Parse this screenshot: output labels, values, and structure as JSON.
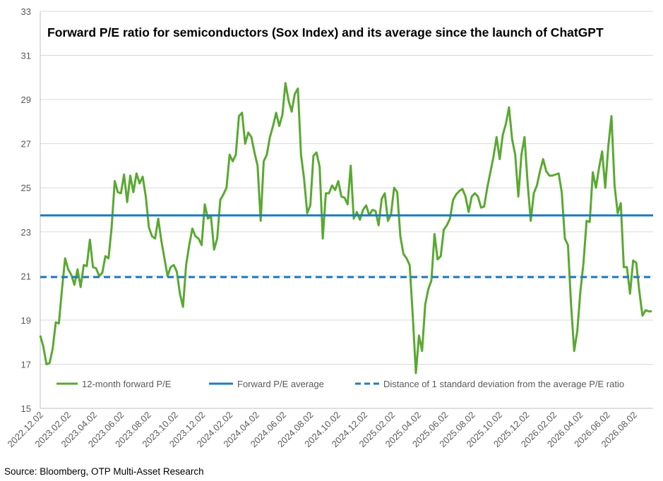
{
  "chart_data": {
    "type": "line",
    "title": "Forward P/E ratio for semiconductors (Sox Index) and its average since the launch of ChatGPT",
    "xlabel": "",
    "ylabel": "",
    "ylim": [
      15,
      33
    ],
    "y_ticks": [
      15,
      17,
      19,
      21,
      23,
      25,
      27,
      29,
      31,
      33
    ],
    "x_range": [
      "2022-12-02",
      "2026-09-14"
    ],
    "x_tick_labels": [
      "2022.12.02",
      "2023.02.02",
      "2023.04.02",
      "2023.06.02",
      "2023.08.02",
      "2023.10.02",
      "2023.12.02",
      "2024.02.02",
      "2024.04.02",
      "2024.06.02",
      "2024.08.02",
      "2024.10.02",
      "2024.12.02",
      "2025.02.02",
      "2025.04.02",
      "2025.06.02",
      "2025.08.02",
      "2025.10.02",
      "2025.12.02",
      "2026.02.02",
      "2026.04.02",
      "2026.06.02",
      "2026.08.02"
    ],
    "grid": true,
    "legend_position": "bottom",
    "series": [
      {
        "name": "12-month forward P/E",
        "color": "#5aa832",
        "style": "solid",
        "points": [
          [
            "2022-12-02",
            18.3
          ],
          [
            "2022-12-09",
            17.8
          ],
          [
            "2022-12-16",
            17.0
          ],
          [
            "2022-12-23",
            17.05
          ],
          [
            "2022-12-30",
            17.7
          ],
          [
            "2023-01-06",
            18.9
          ],
          [
            "2023-01-13",
            18.85
          ],
          [
            "2023-01-20",
            20.4
          ],
          [
            "2023-01-27",
            21.8
          ],
          [
            "2023-02-03",
            21.3
          ],
          [
            "2023-02-10",
            21.05
          ],
          [
            "2023-02-17",
            20.6
          ],
          [
            "2023-02-24",
            21.3
          ],
          [
            "2023-03-03",
            20.5
          ],
          [
            "2023-03-10",
            21.5
          ],
          [
            "2023-03-17",
            21.45
          ],
          [
            "2023-03-24",
            22.65
          ],
          [
            "2023-03-31",
            21.4
          ],
          [
            "2023-04-07",
            21.35
          ],
          [
            "2023-04-14",
            21.0
          ],
          [
            "2023-04-21",
            21.15
          ],
          [
            "2023-04-28",
            21.9
          ],
          [
            "2023-05-05",
            21.8
          ],
          [
            "2023-05-12",
            23.2
          ],
          [
            "2023-05-19",
            25.3
          ],
          [
            "2023-05-26",
            24.8
          ],
          [
            "2023-06-02",
            24.75
          ],
          [
            "2023-06-09",
            25.6
          ],
          [
            "2023-06-16",
            24.35
          ],
          [
            "2023-06-23",
            25.55
          ],
          [
            "2023-06-30",
            24.8
          ],
          [
            "2023-07-07",
            25.65
          ],
          [
            "2023-07-14",
            25.2
          ],
          [
            "2023-07-21",
            25.5
          ],
          [
            "2023-07-28",
            24.6
          ],
          [
            "2023-08-04",
            23.2
          ],
          [
            "2023-08-11",
            22.8
          ],
          [
            "2023-08-18",
            22.7
          ],
          [
            "2023-08-25",
            23.6
          ],
          [
            "2023-09-01",
            22.6
          ],
          [
            "2023-09-08",
            21.8
          ],
          [
            "2023-09-15",
            21.0
          ],
          [
            "2023-09-22",
            21.4
          ],
          [
            "2023-09-29",
            21.5
          ],
          [
            "2023-10-06",
            21.2
          ],
          [
            "2023-10-13",
            20.2
          ],
          [
            "2023-10-20",
            19.6
          ],
          [
            "2023-10-27",
            21.5
          ],
          [
            "2023-11-03",
            22.4
          ],
          [
            "2023-11-10",
            23.15
          ],
          [
            "2023-11-17",
            22.8
          ],
          [
            "2023-11-24",
            22.7
          ],
          [
            "2023-12-01",
            22.4
          ],
          [
            "2023-12-08",
            24.25
          ],
          [
            "2023-12-15",
            23.6
          ],
          [
            "2023-12-22",
            23.7
          ],
          [
            "2023-12-29",
            22.2
          ],
          [
            "2024-01-05",
            22.7
          ],
          [
            "2024-01-12",
            24.45
          ],
          [
            "2024-01-19",
            24.7
          ],
          [
            "2024-01-26",
            25.0
          ],
          [
            "2024-02-02",
            26.5
          ],
          [
            "2024-02-09",
            26.2
          ],
          [
            "2024-02-16",
            26.5
          ],
          [
            "2024-02-23",
            28.25
          ],
          [
            "2024-03-01",
            28.4
          ],
          [
            "2024-03-08",
            27.0
          ],
          [
            "2024-03-15",
            27.5
          ],
          [
            "2024-03-22",
            27.3
          ],
          [
            "2024-03-29",
            26.6
          ],
          [
            "2024-04-05",
            26.0
          ],
          [
            "2024-04-12",
            23.5
          ],
          [
            "2024-04-19",
            26.2
          ],
          [
            "2024-04-26",
            26.5
          ],
          [
            "2024-05-03",
            27.3
          ],
          [
            "2024-05-10",
            27.8
          ],
          [
            "2024-05-17",
            28.4
          ],
          [
            "2024-05-24",
            27.8
          ],
          [
            "2024-05-31",
            28.3
          ],
          [
            "2024-06-07",
            29.75
          ],
          [
            "2024-06-14",
            28.95
          ],
          [
            "2024-06-21",
            28.45
          ],
          [
            "2024-06-28",
            29.25
          ],
          [
            "2024-07-05",
            29.5
          ],
          [
            "2024-07-12",
            26.5
          ],
          [
            "2024-07-19",
            25.4
          ],
          [
            "2024-07-26",
            23.85
          ],
          [
            "2024-08-02",
            24.2
          ],
          [
            "2024-08-09",
            26.45
          ],
          [
            "2024-08-16",
            26.6
          ],
          [
            "2024-08-23",
            25.95
          ],
          [
            "2024-08-30",
            22.7
          ],
          [
            "2024-09-06",
            24.75
          ],
          [
            "2024-09-13",
            24.75
          ],
          [
            "2024-09-20",
            25.1
          ],
          [
            "2024-09-27",
            24.9
          ],
          [
            "2024-10-04",
            25.3
          ],
          [
            "2024-10-11",
            24.6
          ],
          [
            "2024-10-18",
            24.55
          ],
          [
            "2024-10-25",
            24.25
          ],
          [
            "2024-11-01",
            26.0
          ],
          [
            "2024-11-08",
            23.6
          ],
          [
            "2024-11-15",
            23.9
          ],
          [
            "2024-11-22",
            23.55
          ],
          [
            "2024-11-29",
            24.0
          ],
          [
            "2024-12-06",
            24.2
          ],
          [
            "2024-12-13",
            23.75
          ],
          [
            "2024-12-20",
            24.0
          ],
          [
            "2024-12-27",
            23.95
          ],
          [
            "2025-01-03",
            23.3
          ],
          [
            "2025-01-10",
            24.5
          ],
          [
            "2025-01-17",
            24.75
          ],
          [
            "2025-01-24",
            23.5
          ],
          [
            "2025-01-31",
            23.8
          ],
          [
            "2025-02-07",
            25.0
          ],
          [
            "2025-02-14",
            24.8
          ],
          [
            "2025-02-21",
            22.8
          ],
          [
            "2025-02-28",
            22.0
          ],
          [
            "2025-03-07",
            21.8
          ],
          [
            "2025-03-14",
            21.5
          ],
          [
            "2025-03-21",
            19.2
          ],
          [
            "2025-03-28",
            16.6
          ],
          [
            "2025-04-04",
            18.3
          ],
          [
            "2025-04-11",
            17.6
          ],
          [
            "2025-04-18",
            19.7
          ],
          [
            "2025-04-25",
            20.4
          ],
          [
            "2025-05-02",
            20.8
          ],
          [
            "2025-05-09",
            22.9
          ],
          [
            "2025-05-16",
            21.75
          ],
          [
            "2025-05-23",
            21.9
          ],
          [
            "2025-05-30",
            23.1
          ],
          [
            "2025-06-06",
            23.3
          ],
          [
            "2025-06-13",
            23.6
          ],
          [
            "2025-06-20",
            24.45
          ],
          [
            "2025-06-27",
            24.7
          ],
          [
            "2025-07-04",
            24.85
          ],
          [
            "2025-07-11",
            24.95
          ],
          [
            "2025-07-18",
            24.6
          ],
          [
            "2025-07-25",
            23.9
          ],
          [
            "2025-08-01",
            24.6
          ],
          [
            "2025-08-08",
            24.75
          ],
          [
            "2025-08-15",
            24.6
          ],
          [
            "2025-08-22",
            24.1
          ],
          [
            "2025-08-29",
            24.15
          ],
          [
            "2025-09-05",
            25.0
          ],
          [
            "2025-09-12",
            25.7
          ],
          [
            "2025-09-19",
            26.4
          ],
          [
            "2025-09-26",
            27.3
          ],
          [
            "2025-10-03",
            26.3
          ],
          [
            "2025-10-10",
            27.4
          ],
          [
            "2025-10-17",
            27.9
          ],
          [
            "2025-10-24",
            28.65
          ],
          [
            "2025-10-31",
            27.2
          ],
          [
            "2025-11-07",
            26.5
          ],
          [
            "2025-11-14",
            24.6
          ],
          [
            "2025-11-21",
            26.5
          ],
          [
            "2025-11-28",
            27.3
          ],
          [
            "2025-12-05",
            25.2
          ],
          [
            "2025-12-12",
            23.5
          ],
          [
            "2025-12-19",
            24.75
          ],
          [
            "2025-12-26",
            25.1
          ],
          [
            "2026-01-02",
            25.75
          ],
          [
            "2026-01-09",
            26.3
          ],
          [
            "2026-01-16",
            25.75
          ],
          [
            "2026-01-23",
            25.55
          ],
          [
            "2026-01-30",
            25.55
          ],
          [
            "2026-02-06",
            25.6
          ],
          [
            "2026-02-13",
            25.65
          ],
          [
            "2026-02-20",
            24.8
          ],
          [
            "2026-02-27",
            22.7
          ],
          [
            "2026-03-06",
            22.4
          ],
          [
            "2026-03-13",
            19.7
          ],
          [
            "2026-03-20",
            17.6
          ],
          [
            "2026-03-27",
            18.5
          ],
          [
            "2026-04-03",
            20.3
          ],
          [
            "2026-04-10",
            21.6
          ],
          [
            "2026-04-17",
            23.5
          ],
          [
            "2026-04-24",
            23.45
          ],
          [
            "2026-05-01",
            25.7
          ],
          [
            "2026-05-08",
            25.0
          ],
          [
            "2026-05-15",
            25.9
          ],
          [
            "2026-05-22",
            26.65
          ],
          [
            "2026-05-29",
            25.0
          ],
          [
            "2026-06-05",
            26.9
          ],
          [
            "2026-06-12",
            28.25
          ],
          [
            "2026-06-19",
            25.1
          ],
          [
            "2026-06-26",
            23.85
          ],
          [
            "2026-07-03",
            24.3
          ],
          [
            "2026-07-10",
            21.4
          ],
          [
            "2026-07-17",
            21.4
          ],
          [
            "2026-07-24",
            20.2
          ],
          [
            "2026-07-31",
            21.7
          ],
          [
            "2026-08-07",
            21.6
          ],
          [
            "2026-08-14",
            20.3
          ],
          [
            "2026-08-21",
            19.2
          ],
          [
            "2026-08-28",
            19.45
          ],
          [
            "2026-09-04",
            19.4
          ],
          [
            "2026-09-11",
            19.4
          ]
        ]
      },
      {
        "name": "Forward P/E average",
        "color": "#1f7bc0",
        "style": "solid",
        "value": 23.75
      },
      {
        "name": "Distance of 1 standard deviation from the average P/E ratio",
        "color": "#1f7bc0",
        "style": "dashed",
        "value": 20.95
      }
    ]
  },
  "source": "Source: Bloomberg, OTP Multi-Asset Research"
}
